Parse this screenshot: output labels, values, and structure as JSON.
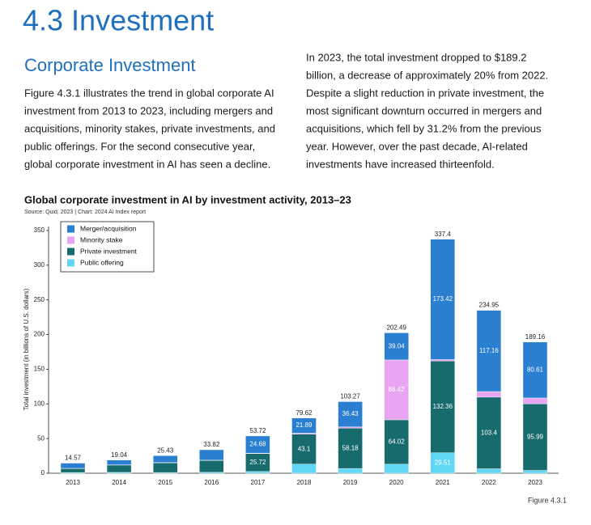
{
  "header": {
    "title": "4.3 Investment",
    "subtitle": "Corporate Investment"
  },
  "paragraphs": [
    [
      "Figure 4.3.1 illustrates the trend in global corporate AI",
      "investment from 2013 to 2023, including mergers and",
      "acquisitions, minority stakes, private investments, and",
      "public offerings. For the second consecutive year,",
      "global corporate investment in AI has seen a decline."
    ],
    [
      "In 2023, the total investment dropped to $189.2",
      "billion, a decrease of approximately 20% from 2022.",
      "Despite a slight reduction in private investment, the",
      "most significant downturn occurred in mergers and",
      "acquisitions, which fell by 31.2% from the previous",
      "year. However, over the past decade, AI-related",
      "investments have increased thirteenfold."
    ]
  ],
  "chart_data": {
    "type": "stacked_bar",
    "title": "Global corporate investment in AI by investment activity, 2013–23",
    "subtitle": "Source: Quid, 2023 | Chart: 2024 AI Index report",
    "ylabel": "Total investment (in billions of U.S. dollars)",
    "categories": [
      "2013",
      "2014",
      "2015",
      "2016",
      "2017",
      "2018",
      "2019",
      "2020",
      "2021",
      "2022",
      "2023"
    ],
    "series": [
      {
        "name": "Merger/acquisition",
        "color": "#2a7fd0",
        "values": [
          7.5,
          7,
          10,
          15,
          24.68,
          21.89,
          36.43,
          39.04,
          173.42,
          117.16,
          80.61
        ],
        "value_labels": [
          null,
          null,
          null,
          null,
          "24.68",
          "21.89",
          "36.43",
          "39.04",
          "173.42",
          "117.16",
          "80.61"
        ]
      },
      {
        "name": "Minority stake",
        "color": "#e8a6f2",
        "values": [
          0.2,
          0.3,
          0.4,
          0.5,
          0.8,
          1.5,
          1.8,
          86.42,
          2.11,
          8,
          8.5
        ],
        "value_labels": [
          null,
          null,
          null,
          null,
          null,
          null,
          null,
          "86.42",
          null,
          null,
          null
        ]
      },
      {
        "name": "Private investment",
        "color": "#186b6d",
        "values": [
          5.8,
          10.5,
          14,
          17,
          25.72,
          43.1,
          58.18,
          64.02,
          132.36,
          103.4,
          95.99
        ],
        "value_labels": [
          null,
          null,
          null,
          null,
          "25.72",
          "43.1",
          "58.18",
          "64.02",
          "132.36",
          "103.4",
          "95.99"
        ]
      },
      {
        "name": "Public offering",
        "color": "#62d6f5",
        "values": [
          1.07,
          1.24,
          1.03,
          1.32,
          2.52,
          13.13,
          6.86,
          13.01,
          29.51,
          6.39,
          4.06
        ],
        "value_labels": [
          null,
          null,
          null,
          null,
          null,
          null,
          null,
          null,
          "29.51",
          null,
          null
        ]
      }
    ],
    "totals": [
      14.57,
      19.04,
      25.43,
      33.82,
      53.72,
      79.62,
      103.27,
      202.49,
      337.4,
      234.95,
      189.16
    ],
    "ylim": [
      0,
      350
    ],
    "yticks": [
      0,
      50,
      100,
      150,
      200,
      250,
      300,
      350
    ],
    "grid": false,
    "legend": "upper left"
  },
  "footer": {
    "figure": "Figure 4.3.1"
  }
}
